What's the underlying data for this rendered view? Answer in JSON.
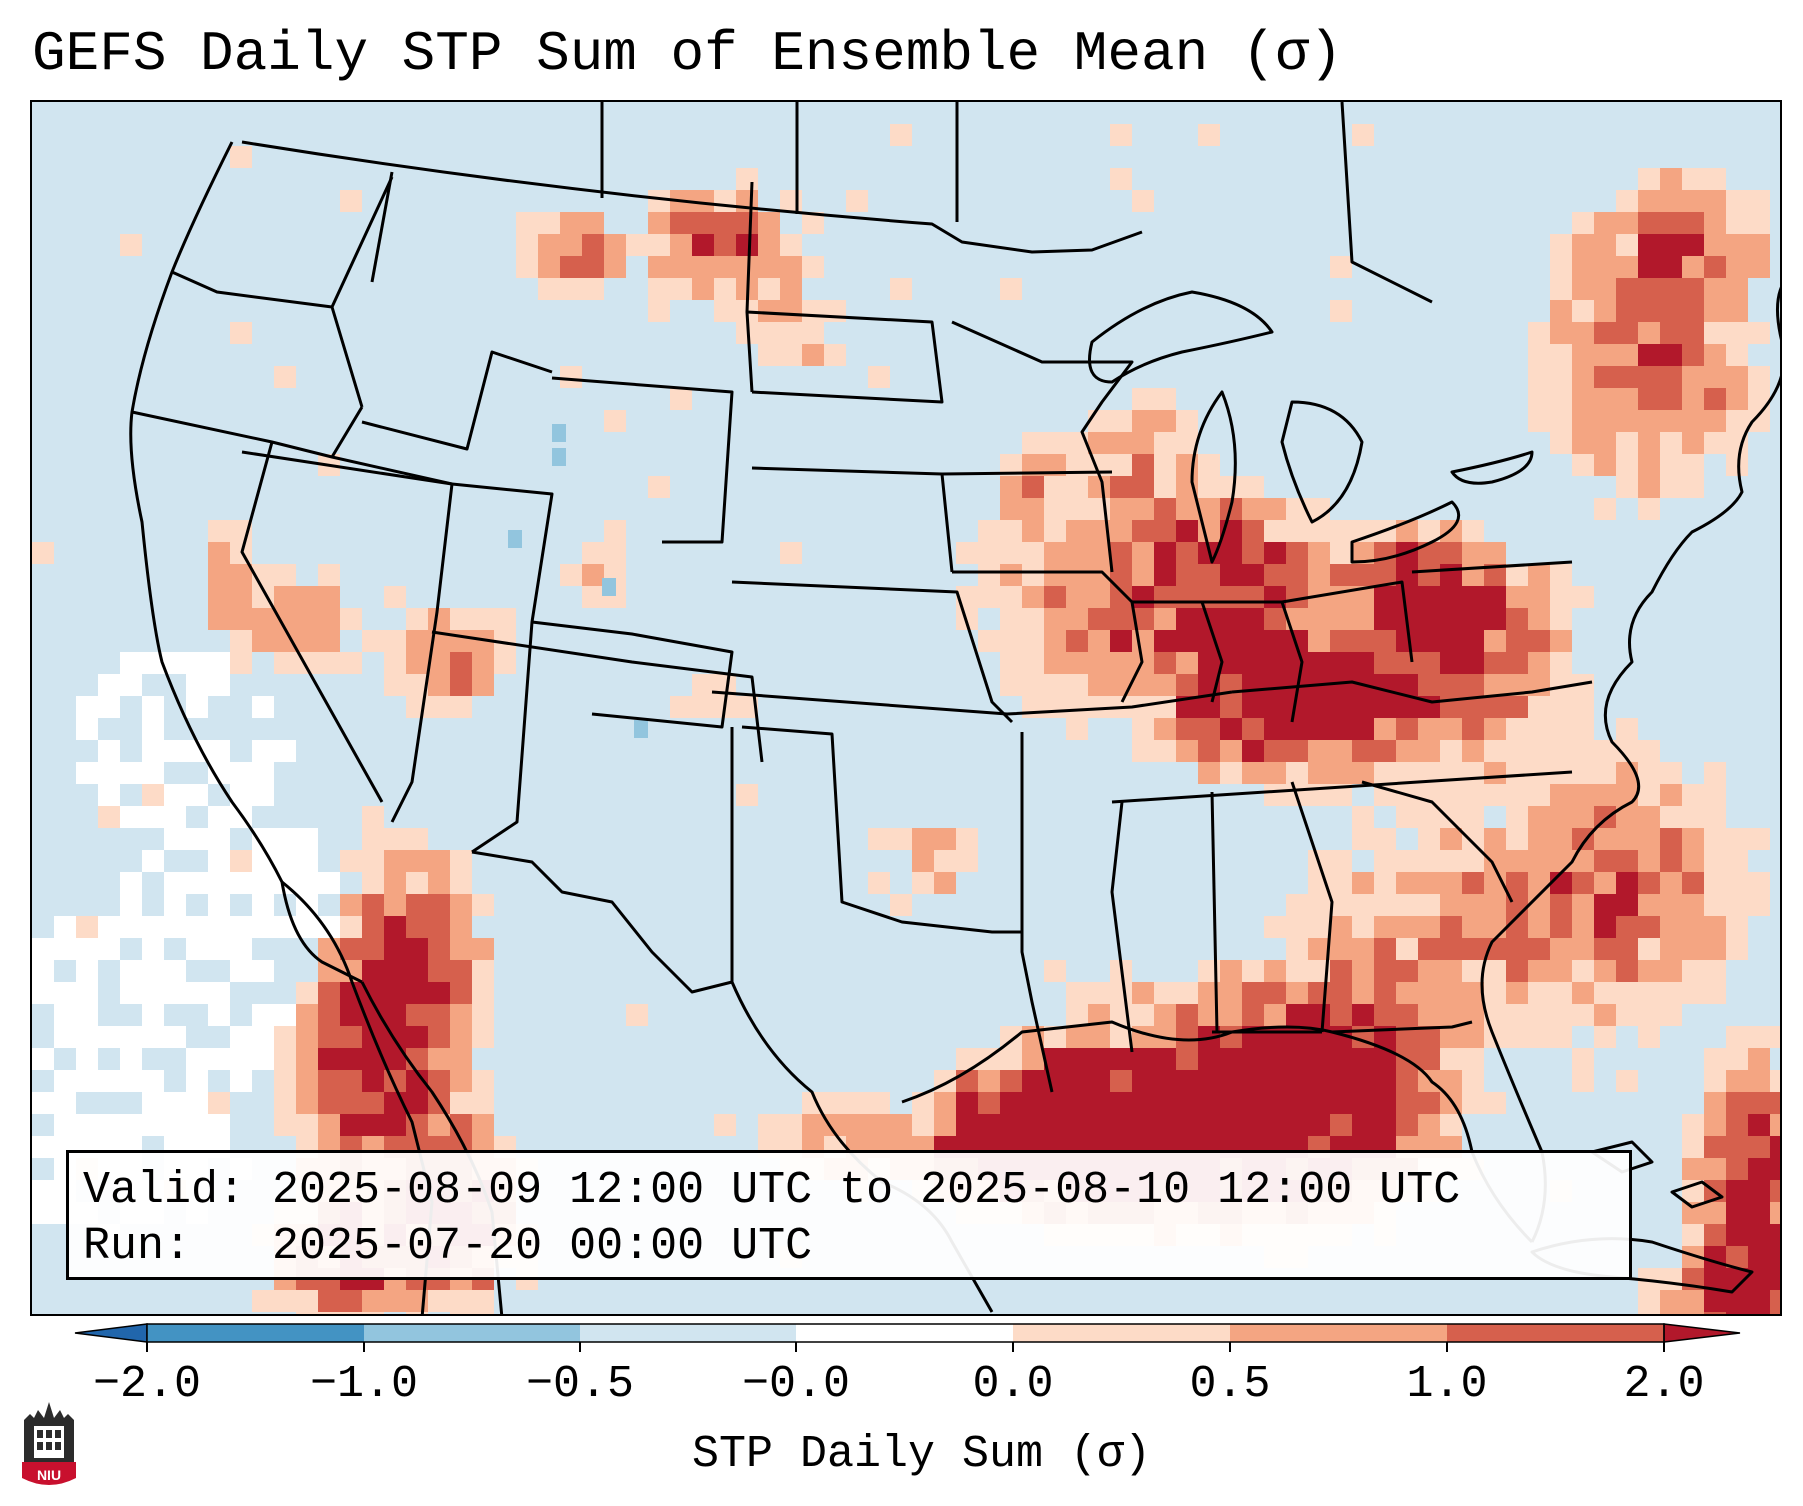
{
  "title": "GEFS Daily STP Sum of Ensemble Mean (σ)",
  "info": {
    "valid_line": "Valid: 2025-08-09 12:00 UTC to 2025-08-10 12:00 UTC",
    "run_line": "Run:   2025-07-20 00:00 UTC"
  },
  "colorbar": {
    "label": "STP Daily Sum (σ)",
    "ticks": [
      "−2.0",
      "−1.0",
      "−0.5",
      "−0.0",
      "0.0",
      "0.5",
      "1.0",
      "2.0"
    ],
    "colors": [
      "#2166ac",
      "#4393c3",
      "#92c5de",
      "#d1e5f0",
      "#ffffff",
      "#fddbc7",
      "#f4a582",
      "#d6604d",
      "#b2182b"
    ]
  },
  "logo": {
    "text": "NIU",
    "colors": {
      "red": "#c8102e",
      "dark": "#2b2b2b"
    }
  },
  "map": {
    "background": "#d1e5f0",
    "colors": {
      "light": "#fddbc7",
      "medium": "#f4a582",
      "dark": "#d6604d",
      "extreme": "#b2182b",
      "neutral": "#ffffff",
      "negative": "#92c5de",
      "boundary": "#000000"
    }
  }
}
